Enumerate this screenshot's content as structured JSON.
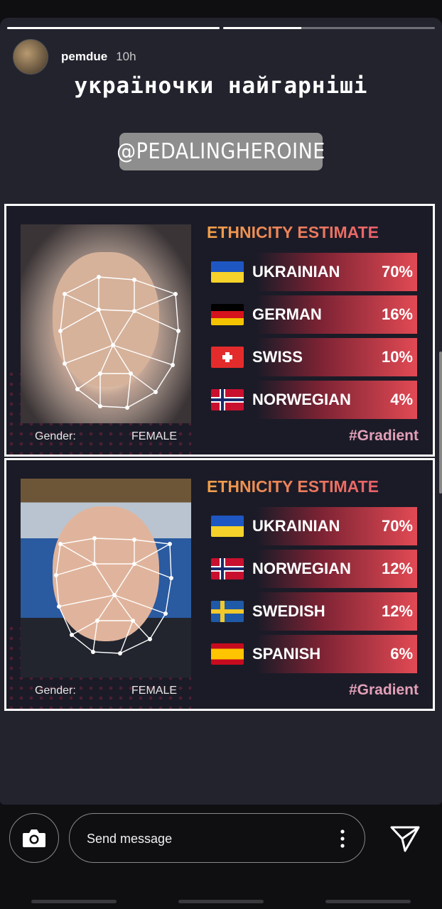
{
  "story": {
    "progress": [
      1.0,
      0.37
    ],
    "username": "pemdue",
    "time": "10h",
    "caption": "українoчки найгарніші",
    "mention": "@PEDALINGHEROINE"
  },
  "cards": [
    {
      "title": "ETHNICITY ESTIMATE",
      "gender_label": "Gender:",
      "gender_value": "FEMALE",
      "hashtag": "#Gradient",
      "rows": [
        {
          "flag": "ukraine-flag-icon",
          "name": "UKRAINIAN",
          "pct": "70%"
        },
        {
          "flag": "germany-flag-icon",
          "name": "GERMAN",
          "pct": "16%"
        },
        {
          "flag": "switzerland-flag-icon",
          "name": "SWISS",
          "pct": "10%"
        },
        {
          "flag": "norway-flag-icon",
          "name": "NORWEGIAN",
          "pct": "4%"
        }
      ]
    },
    {
      "title": "ETHNICITY ESTIMATE",
      "gender_label": "Gender:",
      "gender_value": "FEMALE",
      "hashtag": "#Gradient",
      "rows": [
        {
          "flag": "ukraine-flag-icon",
          "name": "UKRAINIAN",
          "pct": "70%"
        },
        {
          "flag": "norway-flag-icon",
          "name": "NORWEGIAN",
          "pct": "12%"
        },
        {
          "flag": "sweden-flag-icon",
          "name": "SWEDISH",
          "pct": "12%"
        },
        {
          "flag": "spain-flag-icon",
          "name": "SPANISH",
          "pct": "6%"
        }
      ]
    }
  ],
  "footer": {
    "message_placeholder": "Send message",
    "camera_icon": "camera-icon",
    "more_icon": "more-vertical-icon",
    "send_icon": "send-icon"
  }
}
